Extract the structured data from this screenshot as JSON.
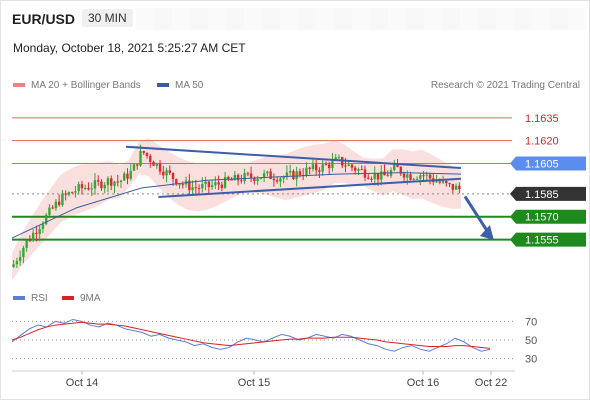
{
  "header": {
    "symbol": "EUR/USD",
    "timeframe": "30 MIN",
    "datetime": "Monday, October 18, 2021 5:25:27 AM CET"
  },
  "legend": {
    "bb_label": "MA 20 + Bollinger Bands",
    "ma50_label": "MA 50",
    "credit": "Research © 2021 Trading Central",
    "rsi_label": "RSI",
    "ma9_label": "9MA"
  },
  "colors": {
    "resistance": "#e06666",
    "pivot": "#5b8def",
    "support": "#1e8a1e",
    "current": "#333333",
    "trendline": "#3e5fa8",
    "ma50": "#3a5c9e",
    "bb_fill": "#f8d4d4",
    "rsi": "#5b7fd6",
    "rsi_ma": "#dd2222",
    "candle_up": "#33a833",
    "candle_down": "#d92b2b"
  },
  "chart_data": [
    {
      "type": "candlestick",
      "title": "EUR/USD 30 MIN",
      "y_range": [
        1.1535,
        1.165
      ],
      "x_ticks": [
        "Oct 14",
        "Oct 15",
        "Oct 16",
        "Oct 22"
      ],
      "levels": [
        {
          "label": "1.1635",
          "value": 1.1635,
          "kind": "resistance"
        },
        {
          "label": "1.1620",
          "value": 1.162,
          "kind": "resistance"
        },
        {
          "label": "1.1605",
          "value": 1.1605,
          "kind": "pivot"
        },
        {
          "label": "1.1585",
          "value": 1.1585,
          "kind": "current"
        },
        {
          "label": "1.1570",
          "value": 1.157,
          "kind": "support"
        },
        {
          "label": "1.1555",
          "value": 1.1555,
          "kind": "support"
        }
      ],
      "price_path": [
        [
          0,
          1.1537
        ],
        [
          8,
          1.1552
        ],
        [
          18,
          1.1566
        ],
        [
          30,
          1.1582
        ],
        [
          40,
          1.1588
        ],
        [
          52,
          1.1591
        ],
        [
          60,
          1.1594
        ],
        [
          66,
          1.1593
        ],
        [
          74,
          1.16
        ],
        [
          80,
          1.1613
        ],
        [
          88,
          1.1605
        ],
        [
          96,
          1.1598
        ],
        [
          104,
          1.1592
        ],
        [
          112,
          1.1589
        ],
        [
          122,
          1.159
        ],
        [
          132,
          1.1593
        ],
        [
          144,
          1.1596
        ],
        [
          156,
          1.1597
        ],
        [
          168,
          1.1596
        ],
        [
          180,
          1.16
        ],
        [
          192,
          1.1603
        ],
        [
          200,
          1.1607
        ],
        [
          210,
          1.1602
        ],
        [
          220,
          1.1598
        ],
        [
          228,
          1.1596
        ],
        [
          236,
          1.1602
        ],
        [
          244,
          1.1597
        ],
        [
          252,
          1.1598
        ],
        [
          260,
          1.1594
        ],
        [
          268,
          1.159
        ],
        [
          276,
          1.1588
        ]
      ],
      "ma50": [
        [
          0,
          1.1556
        ],
        [
          40,
          1.1576
        ],
        [
          80,
          1.1589
        ],
        [
          120,
          1.1594
        ],
        [
          160,
          1.1596
        ],
        [
          200,
          1.1598
        ],
        [
          240,
          1.1599
        ],
        [
          276,
          1.1598
        ]
      ],
      "trendlines": [
        {
          "name": "upper",
          "points": [
            [
              70,
              1.1616
            ],
            [
              276,
              1.1602
            ]
          ]
        },
        {
          "name": "lower",
          "points": [
            [
              90,
              1.1583
            ],
            [
              276,
              1.1595
            ]
          ]
        }
      ],
      "projection": {
        "from": [
          276,
          1.1586
        ],
        "to": [
          295,
          1.1556
        ]
      }
    },
    {
      "type": "line",
      "title": "RSI",
      "y_range": [
        20,
        80
      ],
      "y_ticks": [
        70,
        50,
        30
      ],
      "series": [
        {
          "name": "RSI",
          "values": [
            48,
            55,
            62,
            66,
            64,
            70,
            68,
            72,
            70,
            66,
            64,
            68,
            66,
            62,
            60,
            58,
            54,
            56,
            52,
            50,
            48,
            44,
            46,
            42,
            40,
            42,
            48,
            52,
            50,
            48,
            52,
            56,
            54,
            50,
            52,
            56,
            54,
            52,
            56,
            54,
            50,
            46,
            44,
            40,
            38,
            42,
            44,
            40,
            38,
            42,
            46,
            52,
            48,
            42,
            38,
            40
          ]
        },
        {
          "name": "9MA",
          "values": [
            50,
            53,
            57,
            61,
            64,
            66,
            67,
            68,
            69,
            68,
            67,
            67,
            66,
            65,
            63,
            61,
            59,
            57,
            55,
            53,
            51,
            49,
            47,
            46,
            45,
            44,
            45,
            46,
            47,
            48,
            49,
            50,
            51,
            51,
            52,
            52,
            52,
            53,
            53,
            53,
            52,
            51,
            50,
            48,
            47,
            46,
            45,
            44,
            43,
            43,
            43,
            44,
            44,
            43,
            42,
            41
          ]
        }
      ]
    }
  ]
}
